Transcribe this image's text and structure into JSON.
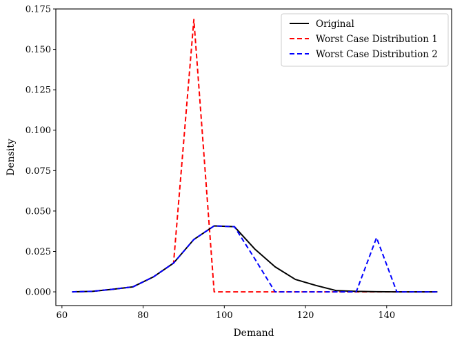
{
  "chart_data": {
    "type": "line",
    "title": "",
    "xlabel": "Demand",
    "ylabel": "Density",
    "xlim": [
      58.5,
      156
    ],
    "ylim": [
      -0.0085,
      0.175
    ],
    "xticks": [
      60,
      80,
      100,
      120,
      140
    ],
    "yticks": [
      0.0,
      0.025,
      0.05,
      0.075,
      0.1,
      0.125,
      0.15,
      0.175
    ],
    "xtick_labels": [
      "60",
      "80",
      "100",
      "120",
      "140"
    ],
    "ytick_labels": [
      "0.000",
      "0.025",
      "0.050",
      "0.075",
      "0.100",
      "0.125",
      "0.150",
      "0.175"
    ],
    "legend_position": "top-right",
    "grid": false,
    "series": [
      {
        "name": "Original",
        "color": "#000000",
        "linestyle": "solid",
        "x": [
          62.5,
          67.5,
          72.5,
          77.5,
          82.5,
          87.5,
          92.5,
          97.5,
          102.5,
          107.5,
          112.5,
          117.5,
          122.5,
          127.5,
          132.5,
          137.5,
          142.5,
          147.5,
          152.5
        ],
        "y": [
          0.0,
          0.0003,
          0.0016,
          0.0031,
          0.0092,
          0.0178,
          0.0324,
          0.0408,
          0.0403,
          0.0265,
          0.0155,
          0.0077,
          0.004,
          0.0008,
          0.0003,
          0.0001,
          0.0,
          0.0,
          0.0
        ]
      },
      {
        "name": "Worst Case Distribution 1",
        "color": "#ff0000",
        "linestyle": "dashed",
        "x": [
          62.5,
          67.5,
          72.5,
          77.5,
          82.5,
          87.5,
          92.5,
          97.5,
          102.5,
          107.5,
          112.5,
          117.5,
          122.5,
          127.5,
          132.5,
          137.5,
          142.5,
          147.5,
          152.5
        ],
        "y": [
          0.0,
          0.0003,
          0.0016,
          0.0031,
          0.0092,
          0.0178,
          0.1685,
          0.0,
          0.0,
          0.0,
          0.0,
          0.0,
          0.0,
          0.0,
          0.0,
          0.0,
          0.0,
          0.0,
          0.0
        ]
      },
      {
        "name": "Worst Case Distribution 2",
        "color": "#0000ff",
        "linestyle": "dashed",
        "x": [
          62.5,
          67.5,
          72.5,
          77.5,
          82.5,
          87.5,
          92.5,
          97.5,
          102.5,
          107.5,
          112.5,
          117.5,
          122.5,
          127.5,
          132.5,
          137.5,
          142.5,
          147.5,
          152.5
        ],
        "y": [
          0.0,
          0.0003,
          0.0016,
          0.0031,
          0.0092,
          0.0178,
          0.0324,
          0.0408,
          0.0403,
          0.0205,
          0.0,
          0.0,
          0.0,
          0.0,
          0.0,
          0.0335,
          0.0,
          0.0,
          0.0
        ]
      }
    ]
  }
}
